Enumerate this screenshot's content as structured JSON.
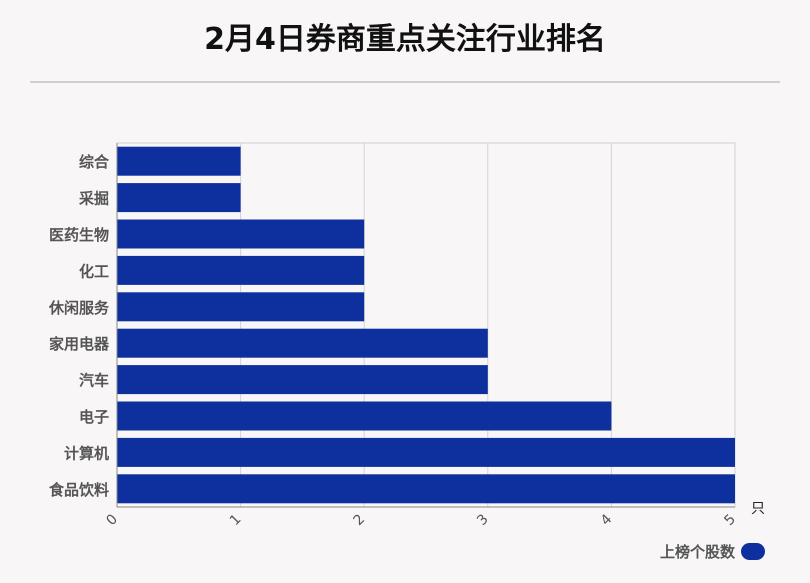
{
  "title": "2月4日券商重点关注行业排名",
  "chart_data": {
    "type": "bar",
    "orientation": "horizontal",
    "categories": [
      "综合",
      "采掘",
      "医药生物",
      "化工",
      "休闲服务",
      "家用电器",
      "汽车",
      "电子",
      "计算机",
      "食品饮料"
    ],
    "series": [
      {
        "name": "上榜个股数",
        "values": [
          1,
          1,
          2,
          2,
          2,
          3,
          3,
          4,
          5,
          5
        ]
      }
    ],
    "xlim": [
      0,
      5
    ],
    "xticks": [
      "0",
      "1",
      "2",
      "3",
      "4",
      "5"
    ],
    "unit": "只",
    "grid": true,
    "legend": "bottom-right",
    "bar_color": "#0e2f9e"
  }
}
